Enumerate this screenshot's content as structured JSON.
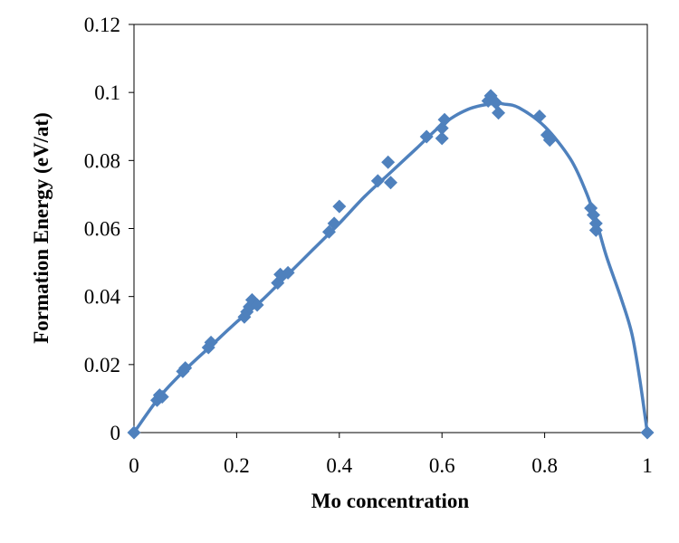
{
  "chart_data": {
    "type": "scatter",
    "title": "",
    "xlabel": "Mo concentration",
    "ylabel": "Formation Energy (eV/at)",
    "xlim": [
      0,
      1
    ],
    "ylim": [
      0,
      0.12
    ],
    "x_ticks": [
      "0",
      "0.2",
      "0.4",
      "0.6",
      "0.8",
      "1"
    ],
    "y_ticks": [
      "0",
      "0.02",
      "0.04",
      "0.06",
      "0.08",
      "0.1",
      "0.12"
    ],
    "grid": false,
    "legend": "none",
    "colors": {
      "series": "#4F81BD"
    },
    "series": [
      {
        "marker": "diamond",
        "points": [
          [
            0.0,
            0.0
          ],
          [
            0.045,
            0.0095
          ],
          [
            0.05,
            0.011
          ],
          [
            0.055,
            0.0105
          ],
          [
            0.095,
            0.018
          ],
          [
            0.1,
            0.019
          ],
          [
            0.145,
            0.025
          ],
          [
            0.15,
            0.0265
          ],
          [
            0.215,
            0.034
          ],
          [
            0.22,
            0.0355
          ],
          [
            0.225,
            0.037
          ],
          [
            0.23,
            0.039
          ],
          [
            0.24,
            0.0375
          ],
          [
            0.28,
            0.044
          ],
          [
            0.285,
            0.0465
          ],
          [
            0.3,
            0.047
          ],
          [
            0.38,
            0.059
          ],
          [
            0.39,
            0.0615
          ],
          [
            0.4,
            0.0665
          ],
          [
            0.475,
            0.074
          ],
          [
            0.495,
            0.0795
          ],
          [
            0.5,
            0.0735
          ],
          [
            0.57,
            0.087
          ],
          [
            0.6,
            0.0865
          ],
          [
            0.6,
            0.0895
          ],
          [
            0.605,
            0.092
          ],
          [
            0.69,
            0.0975
          ],
          [
            0.695,
            0.099
          ],
          [
            0.705,
            0.097
          ],
          [
            0.71,
            0.094
          ],
          [
            0.79,
            0.093
          ],
          [
            0.805,
            0.0875
          ],
          [
            0.81,
            0.086
          ],
          [
            0.89,
            0.066
          ],
          [
            0.895,
            0.064
          ],
          [
            0.9,
            0.0615
          ],
          [
            0.9,
            0.0595
          ],
          [
            1.0,
            0.0
          ]
        ],
        "fit_curve": [
          [
            0.0,
            0.0
          ],
          [
            0.05,
            0.0105
          ],
          [
            0.1,
            0.0185
          ],
          [
            0.15,
            0.0255
          ],
          [
            0.2,
            0.0325
          ],
          [
            0.25,
            0.039
          ],
          [
            0.3,
            0.0465
          ],
          [
            0.35,
            0.054
          ],
          [
            0.4,
            0.0615
          ],
          [
            0.45,
            0.0695
          ],
          [
            0.5,
            0.0765
          ],
          [
            0.55,
            0.0835
          ],
          [
            0.6,
            0.0905
          ],
          [
            0.65,
            0.095
          ],
          [
            0.7,
            0.0968
          ],
          [
            0.72,
            0.0966
          ],
          [
            0.75,
            0.0955
          ],
          [
            0.8,
            0.09
          ],
          [
            0.85,
            0.0805
          ],
          [
            0.88,
            0.071
          ],
          [
            0.9,
            0.0625
          ],
          [
            0.92,
            0.052
          ],
          [
            0.95,
            0.039
          ],
          [
            0.97,
            0.029
          ],
          [
            0.985,
            0.016
          ],
          [
            1.0,
            0.0
          ]
        ]
      }
    ]
  }
}
